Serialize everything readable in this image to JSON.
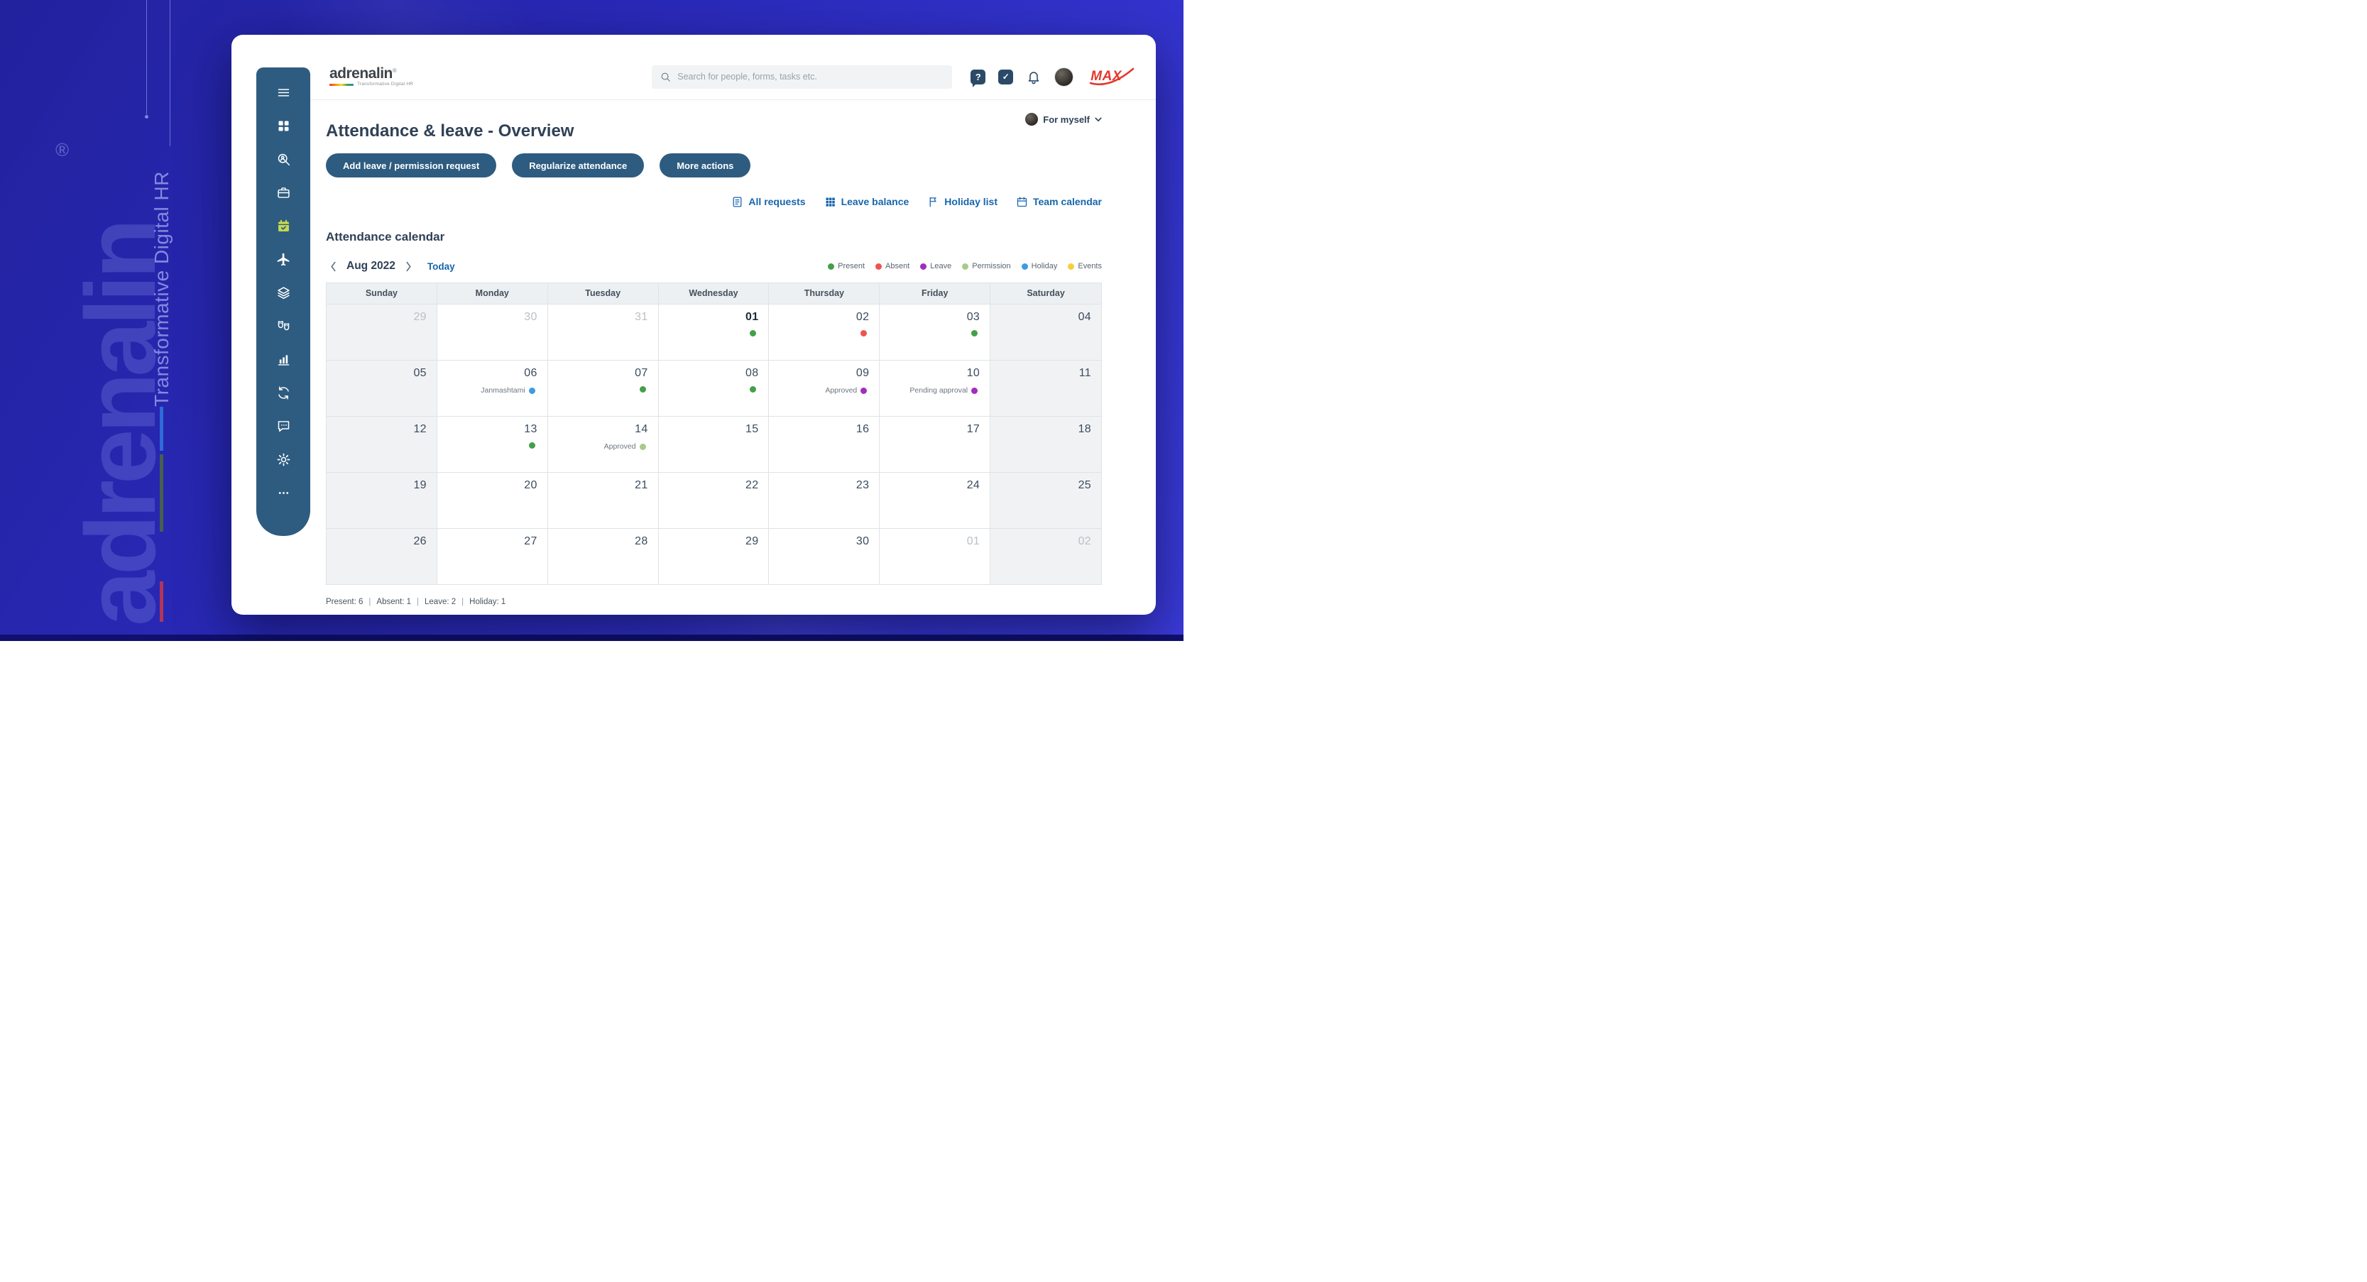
{
  "colors": {
    "present": "#43a047",
    "absent": "#ef5350",
    "leave": "#a22cc0",
    "permission": "#a9c98c",
    "holiday": "#3f9be2",
    "events": "#f6cf3a"
  },
  "background": {
    "brand": "adrenalin",
    "registered": "®",
    "tagline": "Transformative Digital HR"
  },
  "topbar": {
    "logo": "adrenalin",
    "logo_registered": "®",
    "logo_tagline": "Transformative Digital HR",
    "search_placeholder": "Search for people, forms, tasks etc.",
    "partner_brand": "MAX"
  },
  "sidebar": {
    "items": [
      {
        "id": "menu",
        "icon": "menu",
        "active": false
      },
      {
        "id": "dashboard",
        "icon": "dashboard",
        "active": false
      },
      {
        "id": "people-search",
        "icon": "search-user",
        "active": false
      },
      {
        "id": "workspace",
        "icon": "briefcase",
        "active": false
      },
      {
        "id": "attendance-leave",
        "icon": "calendar-check",
        "active": true
      },
      {
        "id": "travel",
        "icon": "plane",
        "active": false
      },
      {
        "id": "payroll",
        "icon": "layers",
        "active": false
      },
      {
        "id": "engagement",
        "icon": "masks",
        "active": false
      },
      {
        "id": "reports",
        "icon": "chart",
        "active": false
      },
      {
        "id": "processes",
        "icon": "sync",
        "active": false
      },
      {
        "id": "messages",
        "icon": "chat",
        "active": false
      },
      {
        "id": "settings",
        "icon": "gear",
        "active": false
      },
      {
        "id": "more",
        "icon": "dots",
        "active": false
      }
    ]
  },
  "page": {
    "title": "Attendance & leave - Overview",
    "scope": "For myself"
  },
  "actions": [
    {
      "id": "add-leave",
      "label": "Add leave / permission request"
    },
    {
      "id": "regularize",
      "label": "Regularize attendance"
    },
    {
      "id": "more-actions",
      "label": "More actions"
    }
  ],
  "quick_links": [
    {
      "id": "all-requests",
      "label": "All requests"
    },
    {
      "id": "leave-balance",
      "label": "Leave balance"
    },
    {
      "id": "holiday-list",
      "label": "Holiday list"
    },
    {
      "id": "team-calendar",
      "label": "Team calendar"
    }
  ],
  "calendar": {
    "title": "Attendance calendar",
    "month": "Aug 2022",
    "today": "Today",
    "legend": [
      {
        "key": "present",
        "label": "Present"
      },
      {
        "key": "absent",
        "label": "Absent"
      },
      {
        "key": "leave",
        "label": "Leave"
      },
      {
        "key": "permission",
        "label": "Permission"
      },
      {
        "key": "holiday",
        "label": "Holiday"
      },
      {
        "key": "events",
        "label": "Events"
      }
    ],
    "weekdays": [
      "Sunday",
      "Monday",
      "Tuesday",
      "Wednesday",
      "Thursday",
      "Friday",
      "Saturday"
    ],
    "weeks": [
      [
        {
          "day": "29",
          "muted": true
        },
        {
          "day": "30",
          "muted": true
        },
        {
          "day": "31",
          "muted": true
        },
        {
          "day": "01",
          "current": true,
          "status": "present"
        },
        {
          "day": "02",
          "status": "absent"
        },
        {
          "day": "03",
          "status": "present"
        },
        {
          "day": "04"
        }
      ],
      [
        {
          "day": "05"
        },
        {
          "day": "06",
          "label": "Janmashtami",
          "status": "holiday"
        },
        {
          "day": "07",
          "status": "present"
        },
        {
          "day": "08",
          "status": "present"
        },
        {
          "day": "09",
          "label": "Approved",
          "status": "leave"
        },
        {
          "day": "10",
          "label": "Pending approval",
          "status": "leave"
        },
        {
          "day": "11"
        }
      ],
      [
        {
          "day": "12"
        },
        {
          "day": "13",
          "status": "present"
        },
        {
          "day": "14",
          "label": "Approved",
          "status": "permission"
        },
        {
          "day": "15"
        },
        {
          "day": "16"
        },
        {
          "day": "17"
        },
        {
          "day": "18"
        }
      ],
      [
        {
          "day": "19"
        },
        {
          "day": "20"
        },
        {
          "day": "21"
        },
        {
          "day": "22"
        },
        {
          "day": "23"
        },
        {
          "day": "24"
        },
        {
          "day": "25"
        }
      ],
      [
        {
          "day": "26"
        },
        {
          "day": "27"
        },
        {
          "day": "28"
        },
        {
          "day": "29"
        },
        {
          "day": "30"
        },
        {
          "day": "01",
          "muted": true
        },
        {
          "day": "02",
          "muted": true
        }
      ]
    ],
    "summary": [
      "Present: 6",
      "Absent: 1",
      "Leave: 2",
      "Holiday: 1"
    ]
  }
}
